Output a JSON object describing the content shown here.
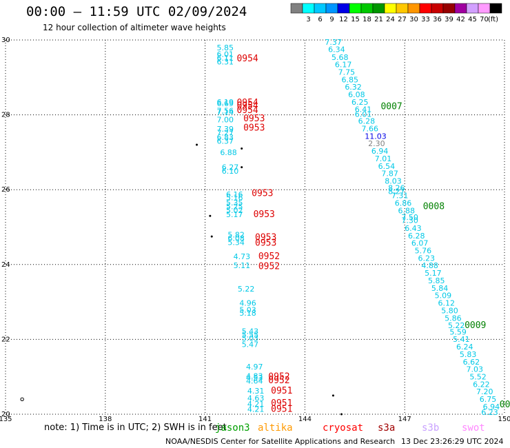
{
  "header": {
    "title": "00:00 — 11:59 UTC 02/09/2024",
    "subtitle": "12 hour collection of altimeter wave heights"
  },
  "colorbar": {
    "unit": "(ft)",
    "bins": [
      {
        "label": "",
        "color": "#808080"
      },
      {
        "label": "3",
        "color": "#00ffff"
      },
      {
        "label": "6",
        "color": "#00c8ff"
      },
      {
        "label": "9",
        "color": "#0096ff"
      },
      {
        "label": "12",
        "color": "#0000e6"
      },
      {
        "label": "15",
        "color": "#00ff00"
      },
      {
        "label": "18",
        "color": "#00c800"
      },
      {
        "label": "21",
        "color": "#009600"
      },
      {
        "label": "24",
        "color": "#ffff00"
      },
      {
        "label": "27",
        "color": "#ffc800"
      },
      {
        "label": "30",
        "color": "#ff9600"
      },
      {
        "label": "33",
        "color": "#ff0000"
      },
      {
        "label": "36",
        "color": "#c80000"
      },
      {
        "label": "39",
        "color": "#960000"
      },
      {
        "label": "42",
        "color": "#a000a0"
      },
      {
        "label": "45",
        "color": "#d2a0ff"
      },
      {
        "label": "70",
        "color": "#ff9bff"
      },
      {
        "label": "",
        "color": "#000000"
      }
    ]
  },
  "footer": {
    "note": "note:  1) Time is in UTC;  2) SWH is in feet",
    "credit": "NOAA/NESDIS Center for Satellite Applications and Research",
    "generated": "13 Dec 23:26:29 UTC 2024",
    "satellites": [
      {
        "name": "jason3",
        "color": "#00a000"
      },
      {
        "name": "altika",
        "color": "#ff9900"
      },
      {
        "name": "cryosat",
        "color": "#ff0000"
      },
      {
        "name": "s3a",
        "color": "#a00000"
      },
      {
        "name": "s3b",
        "color": "#c8a0ff"
      },
      {
        "name": "swot",
        "color": "#ff88ff"
      }
    ]
  },
  "chart_data": {
    "type": "scatter",
    "xlim": [
      135,
      150
    ],
    "ylim": [
      20,
      30
    ],
    "x_ticks": [
      135,
      138,
      141,
      144,
      147,
      150
    ],
    "y_ticks": [
      20,
      22,
      24,
      26,
      28,
      30
    ],
    "grid": true,
    "colors": {
      "cyan": "#00c8e6",
      "blue": "#0000e6",
      "gray": "#808080",
      "red": "#dd0000",
      "green": "#008000"
    },
    "time_labels": [
      {
        "x": 141.95,
        "y": 29.43,
        "label": "0954",
        "color": "red"
      },
      {
        "x": 141.95,
        "y": 28.25,
        "label": "0954",
        "color": "red"
      },
      {
        "x": 141.95,
        "y": 28.17,
        "label": "0954",
        "color": "red"
      },
      {
        "x": 141.95,
        "y": 28.05,
        "label": "0954",
        "color": "red"
      },
      {
        "x": 142.15,
        "y": 27.83,
        "label": "0953",
        "color": "red"
      },
      {
        "x": 142.15,
        "y": 27.58,
        "label": "0953",
        "color": "red"
      },
      {
        "x": 142.4,
        "y": 25.83,
        "label": "0953",
        "color": "red"
      },
      {
        "x": 142.45,
        "y": 25.27,
        "label": "0953",
        "color": "red"
      },
      {
        "x": 142.5,
        "y": 24.65,
        "label": "0953",
        "color": "red"
      },
      {
        "x": 142.5,
        "y": 24.5,
        "label": "0953",
        "color": "red"
      },
      {
        "x": 142.6,
        "y": 24.14,
        "label": "0952",
        "color": "red"
      },
      {
        "x": 142.6,
        "y": 23.88,
        "label": "0952",
        "color": "red"
      },
      {
        "x": 142.9,
        "y": 20.93,
        "label": "0952",
        "color": "red"
      },
      {
        "x": 142.9,
        "y": 20.83,
        "label": "0952",
        "color": "red"
      },
      {
        "x": 142.98,
        "y": 20.55,
        "label": "0951",
        "color": "red"
      },
      {
        "x": 142.98,
        "y": 20.22,
        "label": "0951",
        "color": "red"
      },
      {
        "x": 142.98,
        "y": 20.06,
        "label": "0951",
        "color": "red"
      },
      {
        "x": 146.28,
        "y": 28.15,
        "label": "0007",
        "color": "green"
      },
      {
        "x": 147.55,
        "y": 25.48,
        "label": "0008",
        "color": "green"
      },
      {
        "x": 148.8,
        "y": 22.3,
        "label": "0009",
        "color": "green"
      },
      {
        "x": 149.85,
        "y": 20.18,
        "label": "00",
        "color": "green"
      }
    ],
    "swh_points": [
      {
        "x": 141.35,
        "y": 29.72,
        "label": "5.85",
        "color": "cyan"
      },
      {
        "x": 141.35,
        "y": 29.55,
        "label": "6.01",
        "color": "cyan"
      },
      {
        "x": 141.35,
        "y": 29.45,
        "label": "6.11",
        "color": "cyan"
      },
      {
        "x": 141.35,
        "y": 29.35,
        "label": "6.31",
        "color": "cyan"
      },
      {
        "x": 141.35,
        "y": 28.27,
        "label": "6.19",
        "color": "cyan"
      },
      {
        "x": 141.35,
        "y": 28.23,
        "label": "6.69",
        "color": "cyan"
      },
      {
        "x": 141.35,
        "y": 28.04,
        "label": "7.56",
        "color": "cyan"
      },
      {
        "x": 141.35,
        "y": 28.0,
        "label": "7.14",
        "color": "cyan"
      },
      {
        "x": 141.35,
        "y": 27.8,
        "label": "7.00",
        "color": "cyan"
      },
      {
        "x": 141.35,
        "y": 27.55,
        "label": "7.39",
        "color": "cyan"
      },
      {
        "x": 141.35,
        "y": 27.45,
        "label": "7.27",
        "color": "cyan"
      },
      {
        "x": 141.35,
        "y": 27.33,
        "label": "6.83",
        "color": "cyan"
      },
      {
        "x": 141.35,
        "y": 27.23,
        "label": "6.37",
        "color": "cyan"
      },
      {
        "x": 141.45,
        "y": 26.92,
        "label": "6.88",
        "color": "cyan"
      },
      {
        "x": 141.5,
        "y": 26.53,
        "label": "6.27",
        "color": "cyan"
      },
      {
        "x": 141.5,
        "y": 26.43,
        "label": "6.10",
        "color": "cyan"
      },
      {
        "x": 141.63,
        "y": 25.8,
        "label": "6.16",
        "color": "cyan"
      },
      {
        "x": 141.63,
        "y": 25.72,
        "label": "5.16",
        "color": "cyan"
      },
      {
        "x": 141.63,
        "y": 25.58,
        "label": "5.35",
        "color": "cyan"
      },
      {
        "x": 141.63,
        "y": 25.48,
        "label": "5.25",
        "color": "cyan"
      },
      {
        "x": 141.63,
        "y": 25.38,
        "label": "5.02",
        "color": "cyan"
      },
      {
        "x": 141.63,
        "y": 25.27,
        "label": "5.17",
        "color": "cyan"
      },
      {
        "x": 141.68,
        "y": 24.72,
        "label": "5.82",
        "color": "cyan"
      },
      {
        "x": 141.68,
        "y": 24.63,
        "label": "6.08",
        "color": "cyan"
      },
      {
        "x": 141.68,
        "y": 24.52,
        "label": "5.34",
        "color": "cyan"
      },
      {
        "x": 141.85,
        "y": 24.14,
        "label": "4.73",
        "color": "cyan"
      },
      {
        "x": 141.85,
        "y": 23.9,
        "label": "5.11",
        "color": "cyan"
      },
      {
        "x": 141.98,
        "y": 23.28,
        "label": "5.22",
        "color": "cyan"
      },
      {
        "x": 142.03,
        "y": 22.9,
        "label": "4.96",
        "color": "cyan"
      },
      {
        "x": 142.03,
        "y": 22.72,
        "label": "5.03",
        "color": "cyan"
      },
      {
        "x": 142.03,
        "y": 22.63,
        "label": "5.18",
        "color": "cyan"
      },
      {
        "x": 142.1,
        "y": 22.15,
        "label": "5.43",
        "color": "cyan"
      },
      {
        "x": 142.1,
        "y": 22.05,
        "label": "5.55",
        "color": "cyan"
      },
      {
        "x": 142.1,
        "y": 21.96,
        "label": "5.03",
        "color": "cyan"
      },
      {
        "x": 142.1,
        "y": 21.8,
        "label": "5.47",
        "color": "cyan"
      },
      {
        "x": 142.23,
        "y": 21.2,
        "label": "4.97",
        "color": "cyan"
      },
      {
        "x": 142.23,
        "y": 20.95,
        "label": "4.83",
        "color": "cyan"
      },
      {
        "x": 142.23,
        "y": 20.9,
        "label": "4.53",
        "color": "cyan"
      },
      {
        "x": 142.23,
        "y": 20.82,
        "label": "4.64",
        "color": "cyan"
      },
      {
        "x": 142.27,
        "y": 20.55,
        "label": "4.31",
        "color": "cyan"
      },
      {
        "x": 142.27,
        "y": 20.36,
        "label": "4.63",
        "color": "cyan"
      },
      {
        "x": 142.27,
        "y": 20.2,
        "label": "4.21",
        "color": "cyan"
      },
      {
        "x": 142.27,
        "y": 20.06,
        "label": "4.21",
        "color": "cyan"
      },
      {
        "x": 144.6,
        "y": 29.87,
        "label": "7.37",
        "color": "cyan"
      },
      {
        "x": 144.7,
        "y": 29.68,
        "label": "6.34",
        "color": "cyan"
      },
      {
        "x": 144.8,
        "y": 29.47,
        "label": "5.68",
        "color": "cyan"
      },
      {
        "x": 144.9,
        "y": 29.27,
        "label": "6.17",
        "color": "cyan"
      },
      {
        "x": 145.0,
        "y": 29.07,
        "label": "7.75",
        "color": "cyan"
      },
      {
        "x": 145.1,
        "y": 28.87,
        "label": "6.85",
        "color": "cyan"
      },
      {
        "x": 145.2,
        "y": 28.67,
        "label": "6.32",
        "color": "cyan"
      },
      {
        "x": 145.3,
        "y": 28.47,
        "label": "6.08",
        "color": "cyan"
      },
      {
        "x": 145.4,
        "y": 28.27,
        "label": "6.25",
        "color": "cyan"
      },
      {
        "x": 145.5,
        "y": 28.08,
        "label": "6.41",
        "color": "cyan"
      },
      {
        "x": 145.5,
        "y": 27.95,
        "label": "6.01",
        "color": "cyan"
      },
      {
        "x": 145.6,
        "y": 27.76,
        "label": "6.28",
        "color": "cyan"
      },
      {
        "x": 145.7,
        "y": 27.56,
        "label": "7.66",
        "color": "cyan"
      },
      {
        "x": 145.8,
        "y": 27.36,
        "label": "11.03",
        "color": "blue"
      },
      {
        "x": 145.9,
        "y": 27.16,
        "label": "2.30",
        "color": "gray"
      },
      {
        "x": 146.0,
        "y": 26.96,
        "label": "6.94",
        "color": "cyan"
      },
      {
        "x": 146.1,
        "y": 26.76,
        "label": "7.01",
        "color": "cyan"
      },
      {
        "x": 146.2,
        "y": 26.56,
        "label": "6.54",
        "color": "cyan"
      },
      {
        "x": 146.3,
        "y": 26.36,
        "label": "7.87",
        "color": "cyan"
      },
      {
        "x": 146.4,
        "y": 26.16,
        "label": "8.03",
        "color": "cyan"
      },
      {
        "x": 146.5,
        "y": 25.98,
        "label": "8.26",
        "color": "cyan"
      },
      {
        "x": 146.5,
        "y": 25.88,
        "label": "8.27",
        "color": "cyan"
      },
      {
        "x": 146.6,
        "y": 25.77,
        "label": "7.31",
        "color": "cyan"
      },
      {
        "x": 146.7,
        "y": 25.57,
        "label": "6.86",
        "color": "cyan"
      },
      {
        "x": 146.8,
        "y": 25.37,
        "label": "6.88",
        "color": "cyan"
      },
      {
        "x": 146.9,
        "y": 25.19,
        "label": "7.50",
        "color": "cyan"
      },
      {
        "x": 146.9,
        "y": 25.11,
        "label": "7.30",
        "color": "cyan"
      },
      {
        "x": 147.0,
        "y": 24.9,
        "label": "6.43",
        "color": "cyan"
      },
      {
        "x": 147.1,
        "y": 24.7,
        "label": "6.28",
        "color": "cyan"
      },
      {
        "x": 147.2,
        "y": 24.5,
        "label": "6.07",
        "color": "cyan"
      },
      {
        "x": 147.3,
        "y": 24.3,
        "label": "5.76",
        "color": "cyan"
      },
      {
        "x": 147.4,
        "y": 24.1,
        "label": "6.23",
        "color": "cyan"
      },
      {
        "x": 147.5,
        "y": 23.9,
        "label": "4.88",
        "color": "cyan"
      },
      {
        "x": 147.6,
        "y": 23.7,
        "label": "5.17",
        "color": "cyan"
      },
      {
        "x": 147.7,
        "y": 23.5,
        "label": "5.85",
        "color": "cyan"
      },
      {
        "x": 147.8,
        "y": 23.3,
        "label": "5.84",
        "color": "cyan"
      },
      {
        "x": 147.9,
        "y": 23.1,
        "label": "5.09",
        "color": "cyan"
      },
      {
        "x": 148.0,
        "y": 22.9,
        "label": "6.12",
        "color": "cyan"
      },
      {
        "x": 148.1,
        "y": 22.7,
        "label": "5.80",
        "color": "cyan"
      },
      {
        "x": 148.2,
        "y": 22.5,
        "label": "5.86",
        "color": "cyan"
      },
      {
        "x": 148.3,
        "y": 22.3,
        "label": "5.22",
        "color": "cyan"
      },
      {
        "x": 148.35,
        "y": 22.13,
        "label": "5.59",
        "color": "cyan"
      },
      {
        "x": 148.45,
        "y": 21.93,
        "label": "5.41",
        "color": "cyan"
      },
      {
        "x": 148.55,
        "y": 21.73,
        "label": "6.24",
        "color": "cyan"
      },
      {
        "x": 148.65,
        "y": 21.53,
        "label": "5.83",
        "color": "cyan"
      },
      {
        "x": 148.75,
        "y": 21.33,
        "label": "6.62",
        "color": "cyan"
      },
      {
        "x": 148.85,
        "y": 21.13,
        "label": "7.03",
        "color": "cyan"
      },
      {
        "x": 148.95,
        "y": 20.93,
        "label": "5.52",
        "color": "cyan"
      },
      {
        "x": 149.05,
        "y": 20.73,
        "label": "6.22",
        "color": "cyan"
      },
      {
        "x": 149.15,
        "y": 20.53,
        "label": "7.20",
        "color": "cyan"
      },
      {
        "x": 149.25,
        "y": 20.33,
        "label": "6.75",
        "color": "cyan"
      },
      {
        "x": 149.35,
        "y": 20.13,
        "label": "6.94",
        "color": "cyan"
      },
      {
        "x": 149.3,
        "y": 19.98,
        "label": "6.23",
        "color": "cyan"
      }
    ],
    "land_dots": [
      {
        "x": 140.75,
        "y": 27.2
      },
      {
        "x": 142.1,
        "y": 27.1
      },
      {
        "x": 142.1,
        "y": 26.6
      },
      {
        "x": 141.15,
        "y": 25.3
      },
      {
        "x": 141.2,
        "y": 24.75
      },
      {
        "x": 144.85,
        "y": 20.5
      },
      {
        "x": 145.1,
        "y": 20.0
      }
    ],
    "circle_markers": [
      {
        "x": 135.5,
        "y": 20.4
      }
    ]
  }
}
